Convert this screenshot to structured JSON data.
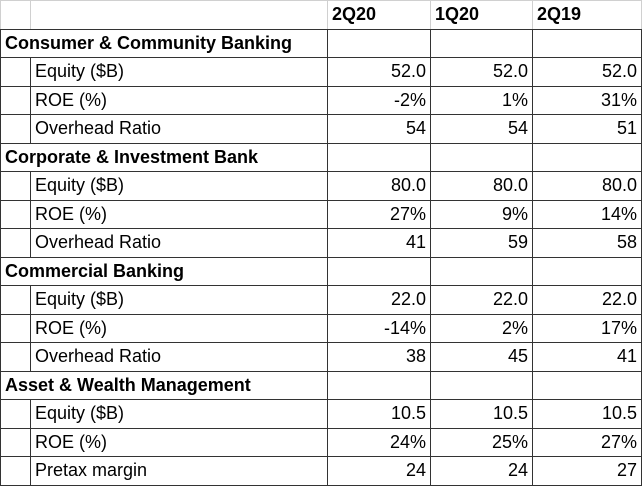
{
  "table": {
    "columns": [
      "2Q20",
      "1Q20",
      "2Q19"
    ],
    "sections": [
      {
        "title": "Consumer & Community Banking",
        "rows": [
          {
            "label": "Equity ($B)",
            "values": [
              "52.0",
              "52.0",
              "52.0"
            ]
          },
          {
            "label": "ROE (%)",
            "values": [
              "-2%",
              "1%",
              "31%"
            ]
          },
          {
            "label": "Overhead Ratio",
            "values": [
              "54",
              "54",
              "51"
            ]
          }
        ]
      },
      {
        "title": "Corporate & Investment Bank",
        "rows": [
          {
            "label": "Equity ($B)",
            "values": [
              "80.0",
              "80.0",
              "80.0"
            ]
          },
          {
            "label": "ROE (%)",
            "values": [
              "27%",
              "9%",
              "14%"
            ]
          },
          {
            "label": "Overhead Ratio",
            "values": [
              "41",
              "59",
              "58"
            ]
          }
        ]
      },
      {
        "title": "Commercial Banking",
        "rows": [
          {
            "label": "Equity ($B)",
            "values": [
              "22.0",
              "22.0",
              "22.0"
            ]
          },
          {
            "label": "ROE (%)",
            "values": [
              "-14%",
              "2%",
              "17%"
            ]
          },
          {
            "label": "Overhead Ratio",
            "values": [
              "38",
              "45",
              "41"
            ]
          }
        ]
      },
      {
        "title": "Asset & Wealth Management",
        "rows": [
          {
            "label": "Equity ($B)",
            "values": [
              "10.5",
              "10.5",
              "10.5"
            ]
          },
          {
            "label": "ROE (%)",
            "values": [
              "24%",
              "25%",
              "27%"
            ]
          },
          {
            "label": "Pretax margin",
            "values": [
              "24",
              "24",
              "27"
            ]
          }
        ]
      }
    ]
  }
}
